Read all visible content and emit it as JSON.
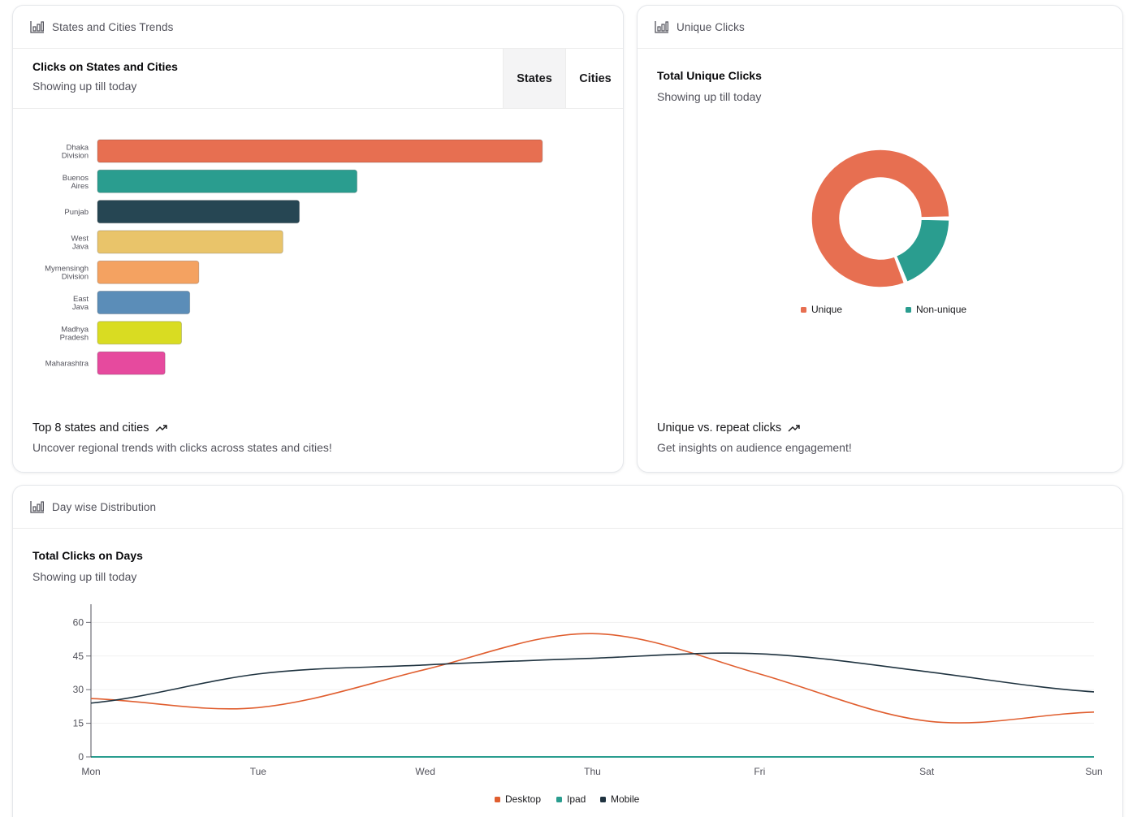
{
  "colors": {
    "desktop": "#e05e2f",
    "ipad": "#2a9d8f",
    "mobile": "#1f3340",
    "unique": "#e76f51",
    "non_unique": "#2a9d8f"
  },
  "states_card": {
    "header_title": "States and Cities Trends",
    "title": "Clicks on States and Cities",
    "subtitle": "Showing up till today",
    "tabs": [
      "States",
      "Cities"
    ],
    "footer_title": "Top 8 states and cities",
    "footer_sub": "Uncover regional trends with clicks across states and cities!"
  },
  "unique_card": {
    "header_title": "Unique Clicks",
    "title": "Total Unique Clicks",
    "subtitle": "Showing up till today",
    "footer_title": "Unique vs. repeat clicks",
    "footer_sub": "Get insights on audience engagement!"
  },
  "days_card": {
    "header_title": "Day wise Distribution",
    "title": "Total Clicks on Days",
    "subtitle": "Showing up till today"
  },
  "chart_data": [
    {
      "type": "bar",
      "orientation": "horizontal",
      "title": "Clicks on States and Cities",
      "categories": [
        [
          "Dhaka",
          "Division"
        ],
        [
          "Buenos",
          "Aires"
        ],
        [
          "Punjab"
        ],
        [
          "West",
          "Java"
        ],
        [
          "Mymensingh",
          "Division"
        ],
        [
          "East",
          "Java"
        ],
        [
          "Madhya",
          "Pradesh"
        ],
        [
          "Maharashtra"
        ]
      ],
      "values": [
        54,
        31.5,
        24.5,
        22.5,
        12.3,
        11.2,
        10.2,
        8.2
      ],
      "colors": [
        "#e76f51",
        "#2a9d8f",
        "#264653",
        "#e9c46a",
        "#f4a261",
        "#5b8db8",
        "#d9dc22",
        "#e64a9e"
      ],
      "xlim": [
        0,
        62
      ]
    },
    {
      "type": "pie",
      "style": "donut",
      "title": "Total Unique Clicks",
      "labels": [
        "Unique",
        "Non-unique"
      ],
      "values": [
        81,
        19
      ],
      "colors": [
        "#e76f51",
        "#2a9d8f"
      ]
    },
    {
      "type": "line",
      "title": "Total Clicks on Days",
      "x": [
        "Mon",
        "Tue",
        "Wed",
        "Thu",
        "Fri",
        "Sat",
        "Sun"
      ],
      "series": [
        {
          "name": "Desktop",
          "values": [
            26,
            22,
            39,
            55,
            37,
            16,
            20
          ]
        },
        {
          "name": "Ipad",
          "values": [
            0,
            0,
            0,
            0,
            0,
            0,
            0
          ]
        },
        {
          "name": "Mobile",
          "values": [
            24,
            37,
            41,
            44,
            46,
            38,
            29
          ]
        }
      ],
      "yticks": [
        0,
        15,
        30,
        45,
        60
      ],
      "ylim": [
        0,
        71
      ]
    }
  ]
}
